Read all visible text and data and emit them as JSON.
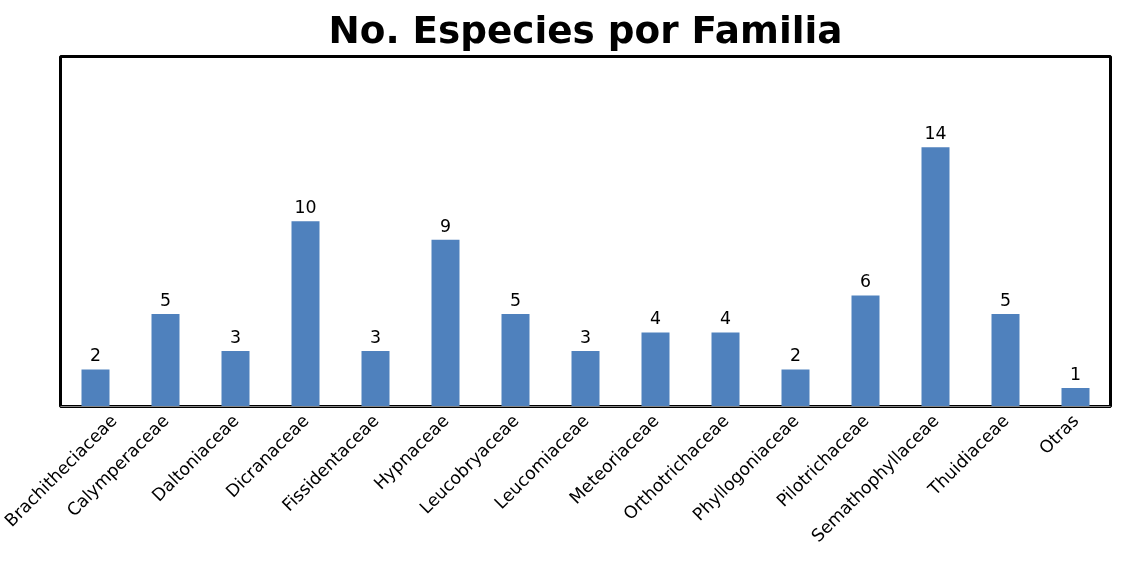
{
  "chart_data": {
    "type": "bar",
    "title": "No. Especies por Familia",
    "categories": [
      "Brachitheciaceae",
      "Calymperaceae",
      "Daltoniaceae",
      "Dicranaceae",
      "Fissidentaceae",
      "Hypnaceae",
      "Leucobryaceae",
      "Leucomiaceae",
      "Meteoriaceae",
      "Orthotrichaceae",
      "Phyllogoniaceae",
      "Pilotrichaceae",
      "Semathophyllaceae",
      "Thuidiaceae",
      "Otras"
    ],
    "values": [
      2,
      5,
      3,
      10,
      3,
      9,
      5,
      3,
      4,
      4,
      2,
      6,
      14,
      5,
      1
    ],
    "color": "#4f81bd",
    "data_labels": true,
    "grid": false
  }
}
